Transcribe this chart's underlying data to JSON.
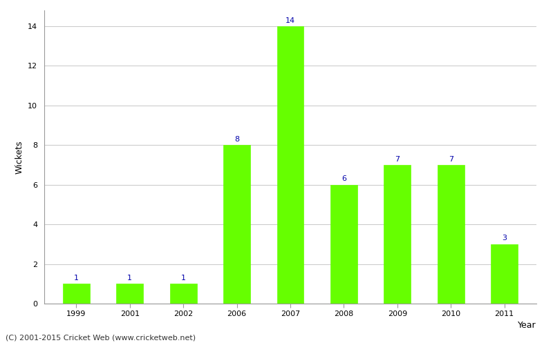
{
  "years": [
    "1999",
    "2001",
    "2002",
    "2006",
    "2007",
    "2008",
    "2009",
    "2010",
    "2011"
  ],
  "wickets": [
    1,
    1,
    1,
    8,
    14,
    6,
    7,
    7,
    3
  ],
  "bar_color": "#66ff00",
  "bar_edgecolor": "#66ff00",
  "xlabel": "Year",
  "ylabel": "Wickets",
  "ylim": [
    0,
    14.8
  ],
  "yticks": [
    0,
    2,
    4,
    6,
    8,
    10,
    12,
    14
  ],
  "label_color": "#0000aa",
  "label_fontsize": 8,
  "axis_label_fontsize": 9,
  "tick_fontsize": 8,
  "background_color": "#ffffff",
  "grid_color": "#cccccc",
  "footer_text": "(C) 2001-2015 Cricket Web (www.cricketweb.net)",
  "footer_fontsize": 8
}
